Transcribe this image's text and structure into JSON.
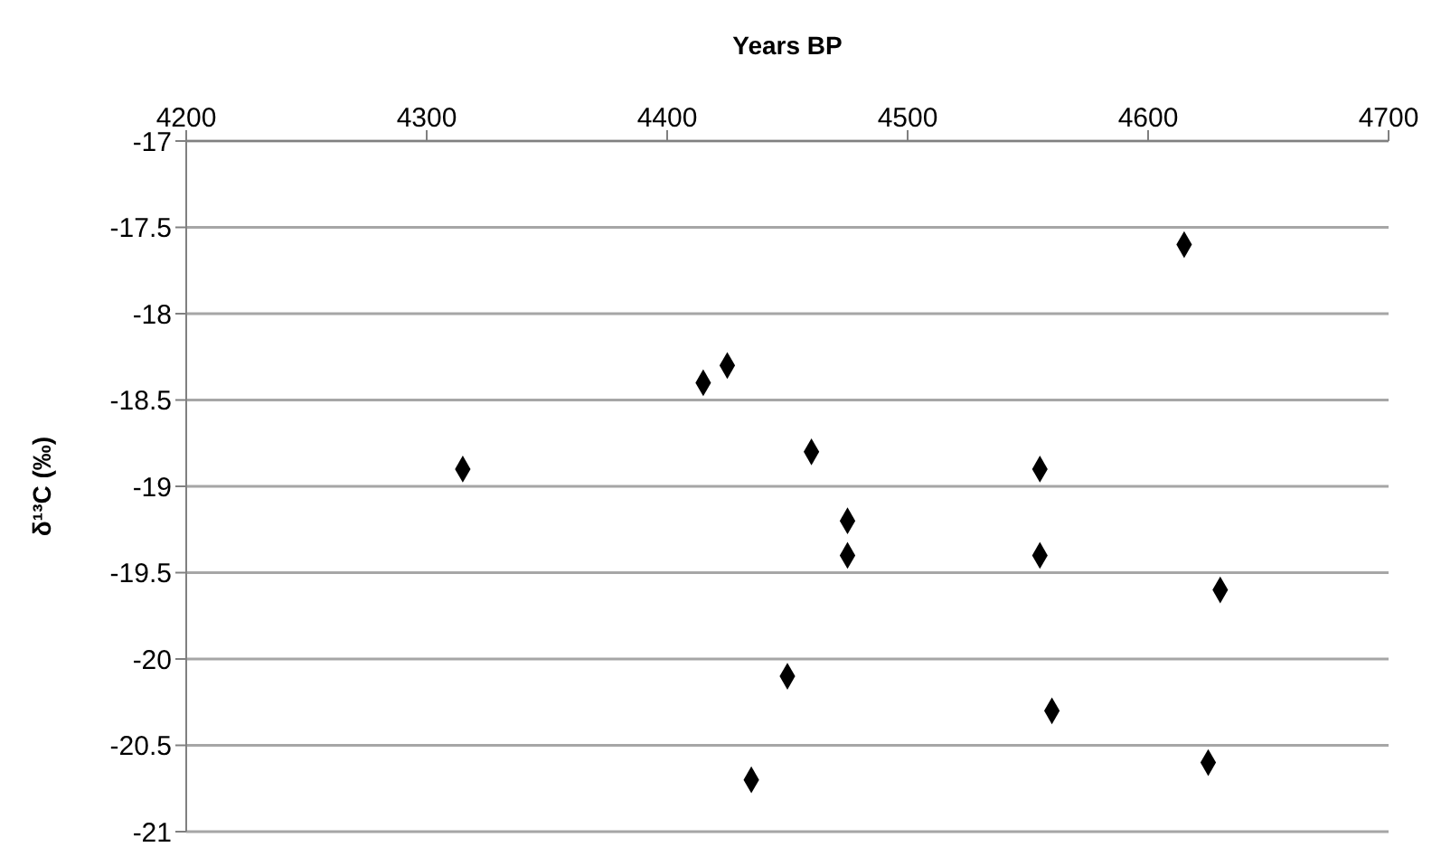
{
  "chart_data": {
    "type": "scatter",
    "xlabel": "Years BP",
    "ylabel": "δ¹³C (‰)",
    "x": [
      4615,
      4415,
      4425,
      4315,
      4460,
      4555,
      4475,
      4475,
      4555,
      4630,
      4450,
      4560,
      4625,
      4435
    ],
    "values": [
      -17.6,
      -18.4,
      -18.3,
      -18.9,
      -18.8,
      -18.9,
      -19.2,
      -19.4,
      -19.4,
      -19.6,
      -20.1,
      -20.3,
      -20.6,
      -20.7
    ],
    "color": "#000000",
    "marker": "diamond",
    "grid": "y",
    "legend": false,
    "xlim": [
      4200,
      4700
    ],
    "xticks": [
      4200,
      4300,
      4400,
      4500,
      4600,
      4700
    ],
    "ylim": [
      -21,
      -17
    ],
    "yticks": [
      -21,
      -20.5,
      -20,
      -19.5,
      -19,
      -18.5,
      -18,
      -17.5,
      -17
    ]
  }
}
